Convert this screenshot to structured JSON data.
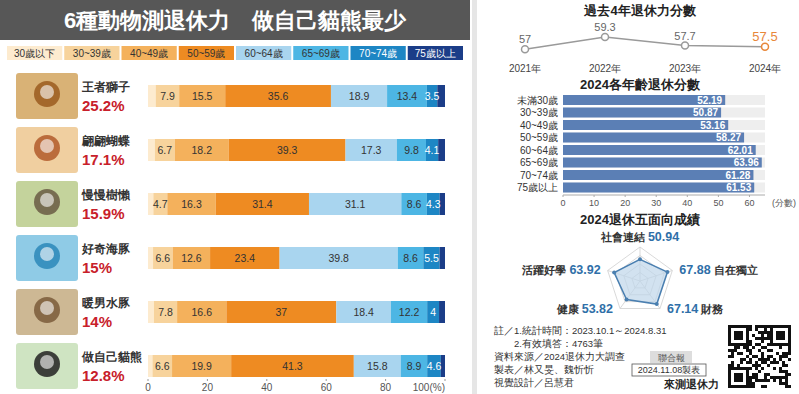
{
  "chart_data": [
    {
      "type": "bar",
      "orientation": "horizontal",
      "stacked": true,
      "title": "6種動物測退休力　做自己貓熊最少",
      "categories": [
        "王者獅子",
        "翩翩蝴蝶",
        "慢慢樹懶",
        "好奇海豚",
        "暖男水豚",
        "做自己貓熊"
      ],
      "category_shares": [
        25.2,
        17.1,
        15.9,
        15,
        14,
        12.8
      ],
      "category_share_labels": [
        "25.2%",
        "17.1%",
        "15.9%",
        "15%",
        "14%",
        "12.8%"
      ],
      "series": [
        {
          "name": "30歲以下",
          "color": "#fdebcf",
          "values": [
            2.6,
            2.3,
            1.8,
            1.7,
            2.0,
            1.5
          ],
          "value_labels": [
            null,
            null,
            null,
            null,
            null,
            null
          ]
        },
        {
          "name": "30~39歲",
          "color": "#f7d39c",
          "values": [
            7.9,
            6.7,
            4.7,
            6.6,
            7.8,
            6.6
          ]
        },
        {
          "name": "40~49歲",
          "color": "#f4b15c",
          "values": [
            15.5,
            18.2,
            16.3,
            12.6,
            16.6,
            19.9
          ]
        },
        {
          "name": "50~59歲",
          "color": "#ee8b22",
          "values": [
            35.6,
            39.3,
            31.4,
            23.4,
            37,
            41.3
          ]
        },
        {
          "name": "60~64歲",
          "color": "#a9d5ef",
          "values": [
            18.9,
            17.3,
            31.1,
            39.8,
            18.4,
            15.8
          ]
        },
        {
          "name": "65~69歲",
          "color": "#4db6e4",
          "values": [
            13.4,
            9.8,
            8.6,
            8.6,
            12.2,
            8.9
          ]
        },
        {
          "name": "70~74歲",
          "color": "#1d86c4",
          "values": [
            3.5,
            4.1,
            4.3,
            5.5,
            4,
            4.6
          ]
        },
        {
          "name": "75歲以上",
          "color": "#1b3d88",
          "values": [
            2.6,
            2.3,
            1.8,
            1.8,
            2.0,
            1.4
          ],
          "value_labels": [
            null,
            null,
            null,
            null,
            null,
            null
          ]
        }
      ],
      "xlim": [
        0,
        100
      ],
      "xticks": [
        0,
        20,
        40,
        60,
        80,
        {
          "value": 100,
          "label": "100(%)"
        }
      ],
      "data_labels": true,
      "legend": "top",
      "grid": false
    },
    {
      "type": "line",
      "title": "過去4年退休力分數",
      "categories": [
        "2021年",
        "2022年",
        "2023年",
        "2024年"
      ],
      "values": [
        57,
        59.3,
        57.7,
        57.5
      ],
      "color": "#9a9a9a",
      "colors": [
        "#9a9a9a",
        "#9a9a9a",
        "#9a9a9a",
        "#e8873a"
      ],
      "ylim": [
        55,
        61
      ],
      "tick_labels": "x",
      "data_labels": true,
      "marker": "circle"
    },
    {
      "type": "bar",
      "orientation": "horizontal",
      "title": "2024各年齡退休分數",
      "categories": [
        "未滿30歲",
        "30~39歲",
        "40~49歲",
        "50~59歲",
        "60~64歲",
        "65~69歲",
        "70~74歲",
        "75歲以上"
      ],
      "values": [
        52.19,
        50.87,
        53.16,
        58.27,
        62.01,
        63.96,
        61.28,
        61.53
      ],
      "color": "#5b7fb5",
      "xlim": [
        0,
        65
      ],
      "xticks": [
        0,
        10,
        20,
        30,
        40,
        50,
        60
      ],
      "xlabel": "(分數)",
      "data_labels": true,
      "grid": false
    },
    {
      "type": "radar",
      "title": "2024退休五面向成績",
      "categories": [
        "社會連結",
        "自在獨立",
        "財務",
        "健康",
        "活躍好學"
      ],
      "values": [
        50.94,
        67.88,
        67.14,
        53.82,
        63.92
      ],
      "color": "#4a7fb0",
      "ylim": [
        0,
        80
      ],
      "yticks": [
        20,
        40,
        60,
        80
      ],
      "tick_labels": false,
      "data_labels": true
    }
  ],
  "footer": {
    "notes": [
      "註／1.統計時間：2023.10.1～2024.8.31",
      "2.有效填答：4763筆"
    ],
    "source": "資料來源／2024退休力大調查",
    "publisher": "聯合報",
    "credits": "製表／林又旻、魏忻忻",
    "date": "2024.11.08製表",
    "design": "視覺設計／呂慧君",
    "qr_caption": "來測退休力"
  }
}
